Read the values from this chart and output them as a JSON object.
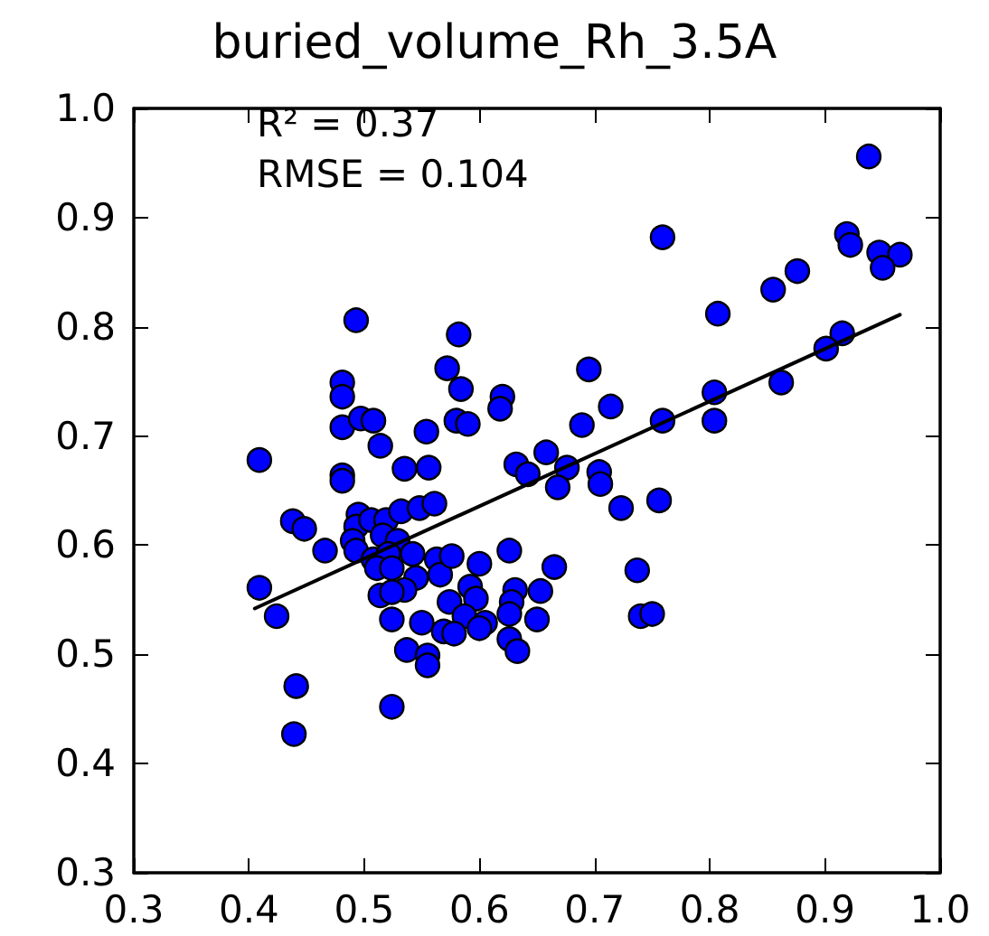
{
  "chart_data": {
    "type": "scatter",
    "title": "buried_volume_Rh_3.5A",
    "annotations": [
      "R² = 0.37",
      "RMSE = 0.104"
    ],
    "xlim": [
      0.3,
      1.0
    ],
    "ylim": [
      0.3,
      1.0
    ],
    "xticks": [
      0.3,
      0.4,
      0.5,
      0.6,
      0.7,
      0.8,
      0.9,
      {
        "value": 1,
        "label": "1.0"
      }
    ],
    "yticks": [
      0.3,
      0.4,
      0.5,
      0.6,
      0.7,
      0.8,
      0.9,
      {
        "value": 1,
        "label": "1.0"
      }
    ],
    "x": [
      0.938,
      0.759,
      0.919,
      0.922,
      0.947,
      0.965,
      0.95,
      0.876,
      0.855,
      0.807,
      0.915,
      0.901,
      0.862,
      0.804,
      0.804,
      0.759,
      0.695,
      0.714,
      0.689,
      0.658,
      0.676,
      0.668,
      0.704,
      0.705,
      0.723,
      0.756,
      0.737,
      0.74,
      0.75,
      0.632,
      0.642,
      0.62,
      0.618,
      0.582,
      0.572,
      0.584,
      0.58,
      0.59,
      0.493,
      0.481,
      0.481,
      0.481,
      0.497,
      0.508,
      0.514,
      0.554,
      0.535,
      0.556,
      0.481,
      0.481,
      0.409,
      0.438,
      0.448,
      0.466,
      0.409,
      0.424,
      0.441,
      0.439,
      0.524,
      0.495,
      0.493,
      0.506,
      0.519,
      0.532,
      0.548,
      0.561,
      0.49,
      0.516,
      0.529,
      0.493,
      0.508,
      0.521,
      0.542,
      0.511,
      0.524,
      0.545,
      0.514,
      0.535,
      0.524,
      0.524,
      0.55,
      0.563,
      0.566,
      0.576,
      0.6,
      0.626,
      0.665,
      0.592,
      0.597,
      0.574,
      0.587,
      0.605,
      0.631,
      0.628,
      0.653,
      0.626,
      0.65,
      0.569,
      0.578,
      0.6,
      0.626,
      0.633,
      0.537,
      0.555,
      0.555
    ],
    "series": [
      {
        "marker": "circle",
        "color": "#0000ff",
        "values": [
          0.956,
          0.882,
          0.885,
          0.875,
          0.868,
          0.866,
          0.854,
          0.851,
          0.834,
          0.812,
          0.794,
          0.78,
          0.749,
          0.74,
          0.714,
          0.714,
          0.761,
          0.727,
          0.71,
          0.685,
          0.671,
          0.653,
          0.667,
          0.656,
          0.634,
          0.641,
          0.577,
          0.535,
          0.537,
          0.674,
          0.665,
          0.736,
          0.725,
          0.793,
          0.762,
          0.743,
          0.714,
          0.711,
          0.806,
          0.749,
          0.736,
          0.708,
          0.716,
          0.714,
          0.691,
          0.704,
          0.67,
          0.671,
          0.664,
          0.659,
          0.678,
          0.622,
          0.615,
          0.595,
          0.561,
          0.535,
          0.471,
          0.427,
          0.452,
          0.628,
          0.617,
          0.623,
          0.623,
          0.631,
          0.634,
          0.638,
          0.604,
          0.609,
          0.604,
          0.595,
          0.587,
          0.592,
          0.592,
          0.579,
          0.579,
          0.57,
          0.554,
          0.559,
          0.557,
          0.532,
          0.529,
          0.587,
          0.573,
          0.59,
          0.583,
          0.595,
          0.58,
          0.562,
          0.551,
          0.548,
          0.535,
          0.529,
          0.559,
          0.548,
          0.558,
          0.537,
          0.532,
          0.521,
          0.519,
          0.524,
          0.514,
          0.503,
          0.504,
          0.499,
          0.49
        ]
      },
      {
        "type": "line",
        "color": "#000000",
        "x": [
          0.405,
          0.965
        ],
        "values": [
          0.542,
          0.811
        ]
      }
    ]
  }
}
